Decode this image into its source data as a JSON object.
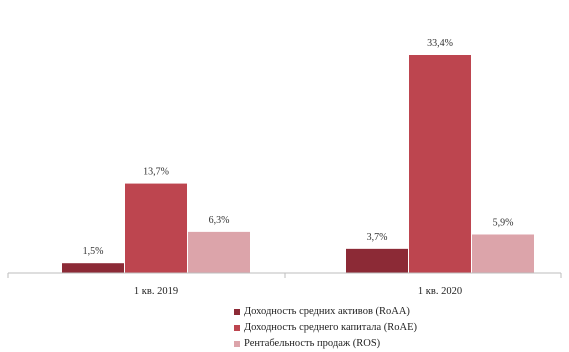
{
  "chart_data": {
    "type": "bar",
    "categories": [
      "1 кв. 2019",
      "1 кв. 2020"
    ],
    "series": [
      {
        "name": "Доходность средних активов (RoAA)",
        "values": [
          1.5,
          3.7
        ],
        "labels": [
          "1,5%",
          "3,7%"
        ],
        "color": "#8c2a36"
      },
      {
        "name": "Доходность среднего капитала (RoAE)",
        "values": [
          13.7,
          33.4
        ],
        "labels": [
          "13,7%",
          "33,4%"
        ],
        "color": "#bd454f"
      },
      {
        "name": "Рентабельность продаж (ROS)",
        "values": [
          6.3,
          5.9
        ],
        "labels": [
          "6,3%",
          "5,9%"
        ],
        "color": "#dca4aa"
      }
    ],
    "ylim": [
      0,
      36
    ],
    "grid": false,
    "legend_position": "bottom"
  }
}
